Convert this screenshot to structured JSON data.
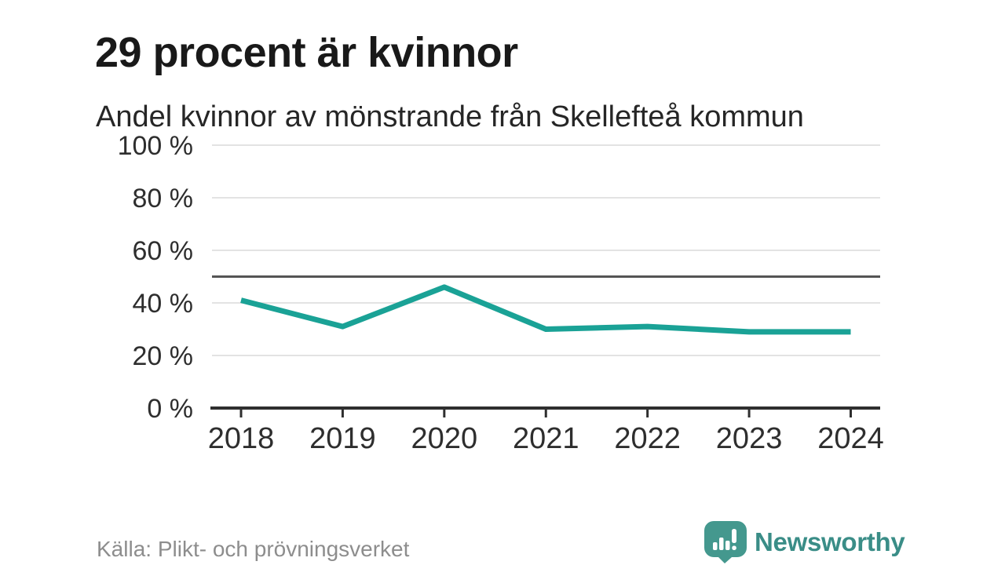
{
  "header": {
    "title": "29 procent är kvinnor",
    "subtitle": "Andel kvinnor av mönstrande från Skellefteå kommun"
  },
  "chart_data": {
    "type": "line",
    "categories": [
      "2018",
      "2019",
      "2020",
      "2021",
      "2022",
      "2023",
      "2024"
    ],
    "series": [
      {
        "name": "Andel kvinnor av mönstrande",
        "values": [
          41,
          31,
          46,
          30,
          31,
          29,
          29
        ]
      }
    ],
    "unit": "%",
    "ylim": [
      0,
      100
    ],
    "yticks": [
      0,
      20,
      40,
      60,
      80,
      100
    ],
    "ytick_suffix": " %",
    "reference_line": 50,
    "grid": true,
    "legend": "none"
  },
  "footer": {
    "source": "Källa: Plikt- och prövningsverket",
    "brand": "Newsworthy"
  },
  "colors": {
    "line": "#1aa296",
    "reference_line": "#555555",
    "gridline": "#e3e3e3",
    "axis": "#2f2f2f",
    "logo": "#44988e",
    "logo_text": "#3a8d87"
  }
}
